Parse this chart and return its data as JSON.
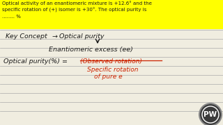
{
  "bg_color": "#e8e8e0",
  "header_bg": "#ffff00",
  "header_text_line1": "Optical activity of an enantiomeric mixture is +12.6° and the",
  "header_text_line2": "specific rotation of (+) isomer is +30°. The optical purity is",
  "header_text_line3": "........ %",
  "key_concept_left": "Key Concept →",
  "key_concept_right": "Optical purity",
  "down_arrow": "↓",
  "enantiomeric": "Enantiomeric excess (ee)",
  "optical_purity_left": "Optical purity(%) = ",
  "numerator": "(Observed rotation)",
  "denominator1": "Specific rotation",
  "denominator2": "of pure e",
  "watermark_text": "PW",
  "line_color": "#aaaaaa",
  "red_color": "#cc2200",
  "black_color": "#1a1a1a",
  "yellow_color": "#ffff00",
  "paper_color": "#f0ede0",
  "watermark_bg": "#3a3a3a",
  "watermark_ring": "#888888"
}
